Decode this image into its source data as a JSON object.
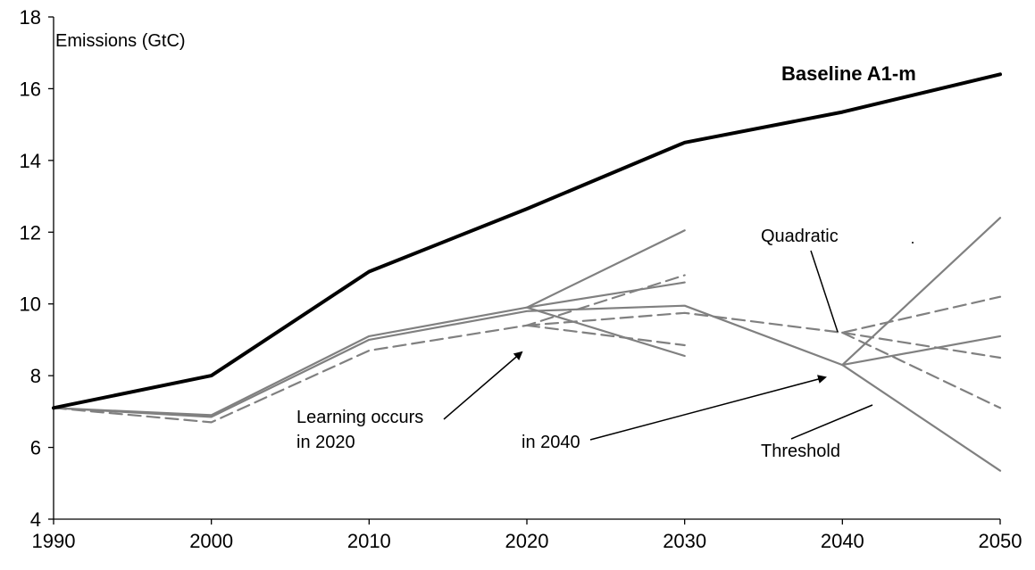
{
  "chart_data": {
    "type": "line",
    "ylabel": "Emissions (GtC)",
    "xlim": [
      1990,
      2050
    ],
    "ylim": [
      4,
      18
    ],
    "x_ticks": [
      "1990",
      "2000",
      "2010",
      "2020",
      "2030",
      "2040",
      "2050"
    ],
    "y_ticks": [
      "4",
      "6",
      "8",
      "10",
      "12",
      "14",
      "16",
      "18"
    ],
    "grid": false,
    "series": [
      {
        "name": "Baseline A1-m",
        "color": "#000000",
        "style": "solid-bold",
        "points": [
          [
            1990,
            7.1
          ],
          [
            2000,
            8.0
          ],
          [
            2010,
            10.9
          ],
          [
            2020,
            12.65
          ],
          [
            2030,
            14.5
          ],
          [
            2040,
            15.35
          ],
          [
            2050,
            16.4
          ]
        ]
      },
      {
        "color": "#808080",
        "style": "solid",
        "points": [
          [
            1990,
            7.1
          ],
          [
            2000,
            6.9
          ],
          [
            2010,
            9.1
          ],
          [
            2020,
            9.9
          ],
          [
            2030,
            12.05
          ]
        ]
      },
      {
        "color": "#808080",
        "style": "solid",
        "points": [
          [
            2020,
            9.9
          ],
          [
            2030,
            10.6
          ]
        ]
      },
      {
        "color": "#808080",
        "style": "solid",
        "points": [
          [
            2020,
            9.9
          ],
          [
            2030,
            8.55
          ]
        ]
      },
      {
        "color": "#808080",
        "style": "solid",
        "points": [
          [
            1990,
            7.1
          ],
          [
            2000,
            6.85
          ],
          [
            2010,
            9.0
          ],
          [
            2020,
            9.8
          ],
          [
            2030,
            9.95
          ],
          [
            2040,
            8.3
          ],
          [
            2050,
            12.4
          ]
        ]
      },
      {
        "color": "#808080",
        "style": "solid",
        "points": [
          [
            2040,
            8.3
          ],
          [
            2050,
            9.1
          ]
        ]
      },
      {
        "color": "#808080",
        "style": "solid",
        "points": [
          [
            2040,
            8.3
          ],
          [
            2050,
            5.35
          ]
        ]
      },
      {
        "color": "#808080",
        "style": "dashed",
        "points": [
          [
            1990,
            7.1
          ],
          [
            2000,
            6.7
          ],
          [
            2010,
            8.7
          ],
          [
            2020,
            9.4
          ],
          [
            2030,
            10.8
          ]
        ]
      },
      {
        "color": "#808080",
        "style": "dashed",
        "points": [
          [
            2020,
            9.4
          ],
          [
            2030,
            8.85
          ]
        ]
      },
      {
        "color": "#808080",
        "style": "dashed",
        "points": [
          [
            2020,
            9.4
          ],
          [
            2030,
            9.75
          ],
          [
            2040,
            9.2
          ],
          [
            2050,
            10.2
          ]
        ]
      },
      {
        "color": "#808080",
        "style": "dashed",
        "points": [
          [
            2040,
            9.2
          ],
          [
            2050,
            8.5
          ]
        ]
      },
      {
        "color": "#808080",
        "style": "dashed",
        "points": [
          [
            2040,
            9.2
          ],
          [
            2050,
            7.1
          ]
        ]
      }
    ],
    "annotations": {
      "baseline_label": "Baseline A1-m",
      "quadratic": "Quadratic",
      "learning_1": "Learning occurs",
      "learning_2": "in 2020",
      "in_2040": "in 2040",
      "threshold": "Threshold"
    }
  }
}
